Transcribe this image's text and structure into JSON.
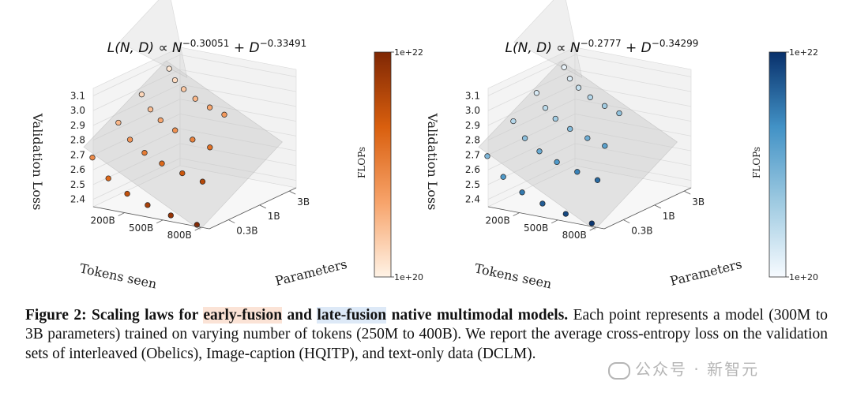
{
  "caption": {
    "figure_label": "Figure 2:",
    "bold_pre": " Scaling laws for ",
    "early": "early-fusion",
    "bold_mid": " and ",
    "late": "late-fusion",
    "bold_post": " native multimodal models.",
    "body": " Each point represents a model (300M to 3B parameters) trained on varying number of tokens (250M to 400B). We report the average cross-entropy loss on the validation sets of interleaved (Obelics), Image-caption (HQITP), and text-only data (DCLM)."
  },
  "watermark": "公众号 · 新智元",
  "chart_data": [
    {
      "type": "scatter3d",
      "title_parts": [
        "L(N, D) ∝ N",
        "−0.30051",
        " + D",
        "−0.33491"
      ],
      "zlabel": "Validation Loss",
      "xlabel": "Tokens seen",
      "ylabel": "Parameters",
      "z_ticks": [
        "2.4",
        "2.5",
        "2.6",
        "2.7",
        "2.8",
        "2.9",
        "3.0",
        "3.1"
      ],
      "x_ticks": [
        "200B",
        "500B",
        "800B"
      ],
      "y_ticks": [
        "0.3B",
        "1B",
        "3B"
      ],
      "colorbar": {
        "label": "FLOPs",
        "max": "1e+22",
        "min": "1e+20",
        "colors": [
          "#fff3e6",
          "#f7a36a",
          "#d95f0e",
          "#7f2704"
        ]
      },
      "grid": true,
      "points": [
        {
          "tokens": 20,
          "params": 0.0,
          "loss": 3.05,
          "flops": 0.05
        },
        {
          "tokens": 60,
          "params": 0.0,
          "loss": 2.98,
          "flops": 0.1
        },
        {
          "tokens": 120,
          "params": 0.0,
          "loss": 2.93,
          "flops": 0.18
        },
        {
          "tokens": 200,
          "params": 0.0,
          "loss": 2.88,
          "flops": 0.25
        },
        {
          "tokens": 300,
          "params": 0.0,
          "loss": 2.84,
          "flops": 0.32
        },
        {
          "tokens": 400,
          "params": 0.0,
          "loss": 2.81,
          "flops": 0.38
        },
        {
          "tokens": 30,
          "params": 0.35,
          "loss": 2.97,
          "flops": 0.12
        },
        {
          "tokens": 90,
          "params": 0.35,
          "loss": 2.88,
          "flops": 0.22
        },
        {
          "tokens": 160,
          "params": 0.35,
          "loss": 2.82,
          "flops": 0.32
        },
        {
          "tokens": 260,
          "params": 0.35,
          "loss": 2.77,
          "flops": 0.42
        },
        {
          "tokens": 380,
          "params": 0.35,
          "loss": 2.73,
          "flops": 0.5
        },
        {
          "tokens": 500,
          "params": 0.35,
          "loss": 2.7,
          "flops": 0.58
        },
        {
          "tokens": 40,
          "params": 0.65,
          "loss": 2.86,
          "flops": 0.25
        },
        {
          "tokens": 120,
          "params": 0.65,
          "loss": 2.76,
          "flops": 0.4
        },
        {
          "tokens": 220,
          "params": 0.65,
          "loss": 2.69,
          "flops": 0.52
        },
        {
          "tokens": 340,
          "params": 0.65,
          "loss": 2.64,
          "flops": 0.62
        },
        {
          "tokens": 480,
          "params": 0.65,
          "loss": 2.6,
          "flops": 0.72
        },
        {
          "tokens": 620,
          "params": 0.65,
          "loss": 2.57,
          "flops": 0.8
        },
        {
          "tokens": 60,
          "params": 1.0,
          "loss": 2.72,
          "flops": 0.45
        },
        {
          "tokens": 170,
          "params": 1.0,
          "loss": 2.6,
          "flops": 0.62
        },
        {
          "tokens": 300,
          "params": 1.0,
          "loss": 2.52,
          "flops": 0.75
        },
        {
          "tokens": 440,
          "params": 1.0,
          "loss": 2.47,
          "flops": 0.85
        },
        {
          "tokens": 600,
          "params": 1.0,
          "loss": 2.43,
          "flops": 0.92
        },
        {
          "tokens": 780,
          "params": 1.0,
          "loss": 2.4,
          "flops": 0.98
        }
      ]
    },
    {
      "type": "scatter3d",
      "title_parts": [
        "L(N, D) ∝ N",
        "−0.2777",
        " + D",
        "−0.34299"
      ],
      "zlabel": "Validation Loss",
      "xlabel": "Tokens seen",
      "ylabel": "Parameters",
      "z_ticks": [
        "2.4",
        "2.5",
        "2.6",
        "2.7",
        "2.8",
        "2.9",
        "3.0",
        "3.1"
      ],
      "x_ticks": [
        "200B",
        "500B",
        "800B"
      ],
      "y_ticks": [
        "0.3B",
        "1B",
        "3B"
      ],
      "colorbar": {
        "label": "FLOPs",
        "max": "1e+22",
        "min": "1e+20",
        "colors": [
          "#f7fbff",
          "#9ecae1",
          "#4292c6",
          "#08306b"
        ]
      },
      "grid": true,
      "points": [
        {
          "tokens": 20,
          "params": 0.0,
          "loss": 3.06,
          "flops": 0.05
        },
        {
          "tokens": 60,
          "params": 0.0,
          "loss": 2.99,
          "flops": 0.1
        },
        {
          "tokens": 120,
          "params": 0.0,
          "loss": 2.94,
          "flops": 0.18
        },
        {
          "tokens": 200,
          "params": 0.0,
          "loss": 2.89,
          "flops": 0.25
        },
        {
          "tokens": 300,
          "params": 0.0,
          "loss": 2.85,
          "flops": 0.32
        },
        {
          "tokens": 400,
          "params": 0.0,
          "loss": 2.82,
          "flops": 0.38
        },
        {
          "tokens": 30,
          "params": 0.35,
          "loss": 2.98,
          "flops": 0.12
        },
        {
          "tokens": 90,
          "params": 0.35,
          "loss": 2.89,
          "flops": 0.22
        },
        {
          "tokens": 160,
          "params": 0.35,
          "loss": 2.83,
          "flops": 0.32
        },
        {
          "tokens": 260,
          "params": 0.35,
          "loss": 2.78,
          "flops": 0.42
        },
        {
          "tokens": 380,
          "params": 0.35,
          "loss": 2.74,
          "flops": 0.5
        },
        {
          "tokens": 500,
          "params": 0.35,
          "loss": 2.71,
          "flops": 0.58
        },
        {
          "tokens": 40,
          "params": 0.65,
          "loss": 2.87,
          "flops": 0.25
        },
        {
          "tokens": 120,
          "params": 0.65,
          "loss": 2.77,
          "flops": 0.4
        },
        {
          "tokens": 220,
          "params": 0.65,
          "loss": 2.7,
          "flops": 0.52
        },
        {
          "tokens": 340,
          "params": 0.65,
          "loss": 2.65,
          "flops": 0.62
        },
        {
          "tokens": 480,
          "params": 0.65,
          "loss": 2.61,
          "flops": 0.72
        },
        {
          "tokens": 620,
          "params": 0.65,
          "loss": 2.58,
          "flops": 0.8
        },
        {
          "tokens": 60,
          "params": 1.0,
          "loss": 2.73,
          "flops": 0.45
        },
        {
          "tokens": 170,
          "params": 1.0,
          "loss": 2.61,
          "flops": 0.62
        },
        {
          "tokens": 300,
          "params": 1.0,
          "loss": 2.53,
          "flops": 0.75
        },
        {
          "tokens": 440,
          "params": 1.0,
          "loss": 2.48,
          "flops": 0.85
        },
        {
          "tokens": 600,
          "params": 1.0,
          "loss": 2.44,
          "flops": 0.92
        },
        {
          "tokens": 780,
          "params": 1.0,
          "loss": 2.41,
          "flops": 0.98
        }
      ]
    }
  ]
}
